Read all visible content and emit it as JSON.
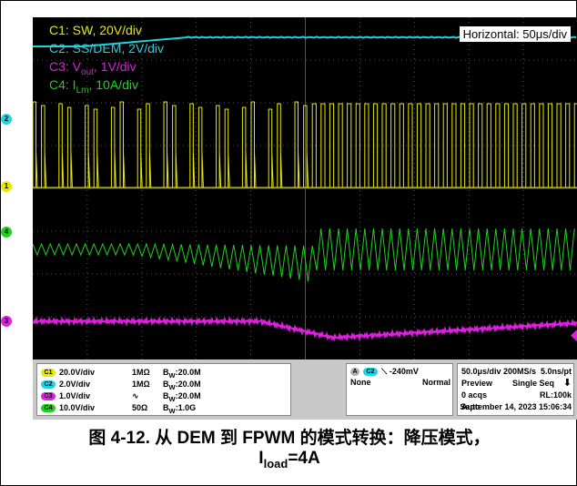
{
  "legend": {
    "c1": "C1: SW, 20V/div",
    "c2": "C2: SS/DEM, 2V/div",
    "c3_main": "C3: V",
    "c3_sub": "out",
    "c3_rest": ", 1V/div",
    "c4_main": "C4: I",
    "c4_sub": "Lm",
    "c4_rest": ", 10A/div",
    "horizontal": "Horizontal: 50μs/div"
  },
  "colors": {
    "c1": "#e8e800",
    "c2": "#22d2e0",
    "c3": "#e020e0",
    "c4": "#20d020",
    "grid": "#555555",
    "background": "#000000"
  },
  "markers": {
    "c1": "1",
    "c2": "2",
    "c3": "3",
    "c4": "4"
  },
  "channels": [
    {
      "chip": "C1",
      "scale": "20.0V/div",
      "coupling": "1MΩ",
      "bw": "20.0M"
    },
    {
      "chip": "C2",
      "scale": "2.0V/div",
      "coupling": "1MΩ",
      "bw": "20.0M"
    },
    {
      "chip": "C3",
      "scale": "1.0V/div",
      "coupling": "∿",
      "bw": "20.0M"
    },
    {
      "chip": "C4",
      "scale": "10.0V/div",
      "coupling": "50Ω",
      "bw": "1.0G"
    }
  ],
  "bw_label": "B",
  "bw_sub": "W",
  "bw_sep": ":",
  "trigger": {
    "chip_a": "A",
    "chip_c": "C2",
    "level": "-240mV",
    "coupling": "None",
    "mode": "Normal"
  },
  "timebase": {
    "rate": "50.0μs/div  200MS/s",
    "resolution": "5.0ns/pt",
    "mode": "Preview",
    "seq": "Single Seq",
    "acqs": "0 acqs",
    "rl": "RL:100k",
    "auto": "Auto",
    "date": "September 14, 2023  15:06:34"
  },
  "caption": {
    "line1": "图 4-12. 从 DEM 到 FPWM 的模式转换：降压模式，",
    "line2_main": "I",
    "line2_sub": "load",
    "line2_rest": "=4A"
  },
  "chart_data": {
    "type": "line",
    "title": "",
    "xlabel": "Horizontal: 50μs/div",
    "x_divisions": 10,
    "y_divisions": 8,
    "series": [
      {
        "name": "C1: SW, 20V/div",
        "description": "switching pulses, low ~10 V, high ~47 V; skipped pulses (DEM) before transition, continuous PWM after"
      },
      {
        "name": "C2: SS/DEM, 2V/div",
        "description": "ramps from about 0.9 V to 3 V between 0.15 and 0.45 div, then flat"
      },
      {
        "name": "C3: Vout, 1V/div",
        "description": "flat, dips about 0.4 V near 6.5 div and recovers by 10 div"
      },
      {
        "name": "C4: ILm, 10A/div",
        "description": "triangular ripple; amplitude grows from about 3 A to 14 A peak-to-peak after mode change"
      }
    ]
  }
}
